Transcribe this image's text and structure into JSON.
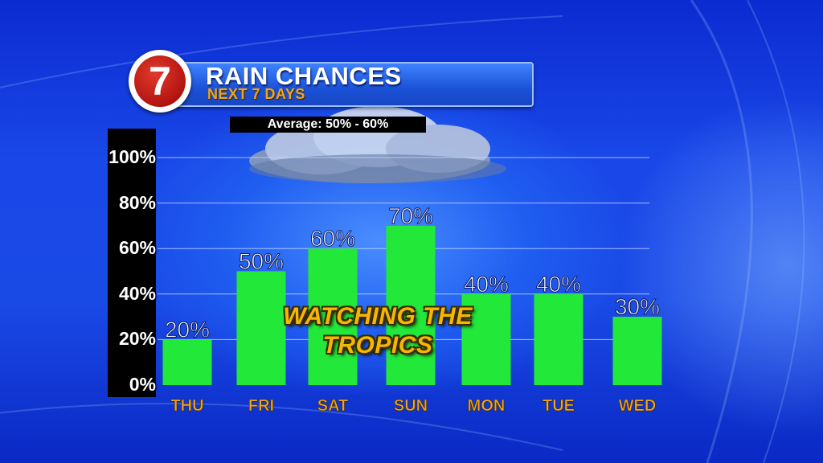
{
  "header": {
    "logo_text": "7",
    "title": "RAIN CHANCES",
    "subtitle": "NEXT 7 DAYS",
    "average_label": "Average: 50% - 60%"
  },
  "overlay_text": {
    "line1": "WATCHING THE",
    "line2": "TROPICS"
  },
  "colors": {
    "bar": "#22e83a",
    "day_label": "#f2a516",
    "title_bar": "#2a66ee",
    "logo_red": "#c21a12"
  },
  "chart_data": {
    "type": "bar",
    "categories": [
      "THU",
      "FRI",
      "SAT",
      "SUN",
      "MON",
      "TUE",
      "WED"
    ],
    "values": [
      20,
      50,
      60,
      70,
      40,
      40,
      30
    ],
    "value_labels": [
      "20%",
      "50%",
      "60%",
      "70%",
      "40%",
      "40%",
      "30%"
    ],
    "title": "RAIN CHANCES",
    "subtitle": "NEXT 7 DAYS",
    "ylim": [
      0,
      100
    ],
    "yticks": [
      0,
      20,
      40,
      60,
      80,
      100
    ],
    "ytick_labels": [
      "0%",
      "20%",
      "40%",
      "60%",
      "80%",
      "100%"
    ],
    "grid": true,
    "annotation": "Average: 50% - 60%"
  }
}
